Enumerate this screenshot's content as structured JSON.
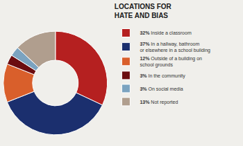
{
  "chart_data": {
    "type": "pie",
    "title": "LOCATIONS FOR\nHATE AND BIAS",
    "categories": [
      "Inside a classroom",
      "In a hallway, bathroom\nor elsewhere in a school building",
      "Outside of a building on\nschool grounds",
      "In the community",
      "On social media",
      "Not reported"
    ],
    "values": [
      32,
      37,
      12,
      3,
      3,
      13
    ],
    "value_labels": [
      "32%",
      "37%",
      "12%",
      "3%",
      "3%",
      "13%"
    ],
    "colors": [
      "#b52020",
      "#1b2f6e",
      "#d95f2b",
      "#6b0d10",
      "#7ba3c0",
      "#b09e8e"
    ],
    "legend": "right"
  }
}
